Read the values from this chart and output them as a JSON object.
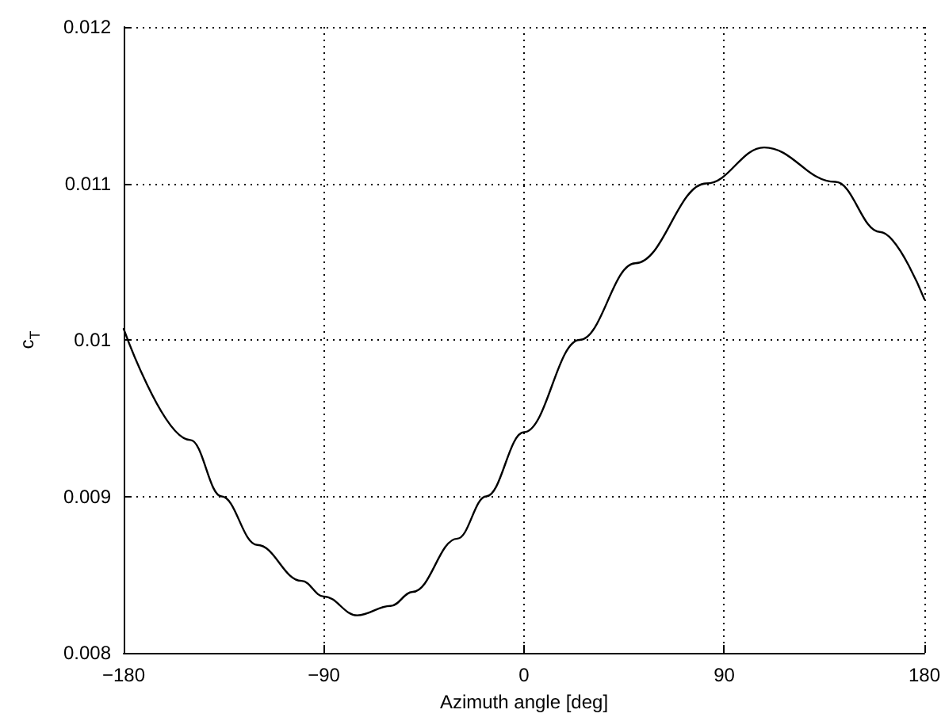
{
  "chart_data": {
    "type": "line",
    "xlabel": "Azimuth angle [deg]",
    "ylabel": "c$_{T}$",
    "x": [
      -180,
      -150,
      -136,
      -120,
      -100,
      -90,
      -75,
      -60,
      -50,
      -30,
      -17,
      0,
      25,
      50,
      82,
      108,
      140,
      160,
      180
    ],
    "series": [
      {
        "color": "#000000",
        "values": [
          0.01007,
          0.00936,
          0.009,
          0.00869,
          0.00846,
          0.00836,
          0.00824,
          0.0083,
          0.00839,
          0.00873,
          0.009,
          0.00941,
          0.01,
          0.01049,
          0.011,
          0.01123,
          0.01101,
          0.01069,
          0.01026
        ]
      }
    ],
    "xlim": [
      -180,
      180
    ],
    "xticks": [
      {
        "value": -180,
        "label": "−180"
      },
      {
        "value": -90,
        "label": "−90"
      },
      0,
      90,
      180
    ],
    "ylim": [
      0.008,
      0.012
    ],
    "yticks": [
      0.008,
      0.009,
      0.01,
      0.011,
      0.012
    ],
    "grid": true,
    "marker": "none",
    "line_style": "solid"
  }
}
